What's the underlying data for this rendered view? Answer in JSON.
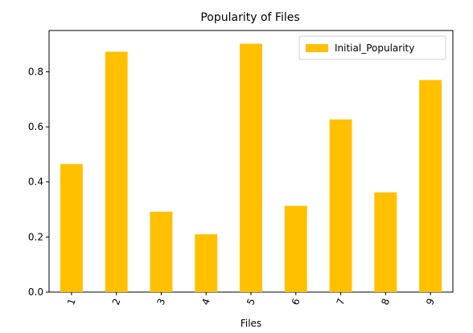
{
  "chart_data": {
    "type": "bar",
    "title": "Popularity of Files",
    "xlabel": "Files",
    "ylabel": "",
    "categories": [
      "1",
      "2",
      "3",
      "4",
      "5",
      "6",
      "7",
      "8",
      "9"
    ],
    "series": [
      {
        "name": "Initial_Popularity",
        "values": [
          0.465,
          0.873,
          0.292,
          0.21,
          0.902,
          0.313,
          0.627,
          0.362,
          0.77
        ]
      }
    ],
    "ylim": [
      0,
      0.95
    ],
    "yticks": [
      "0.0",
      "0.2",
      "0.4",
      "0.6",
      "0.8"
    ],
    "grid": false,
    "legend_position": "top-right",
    "x_tick_rotation": "rotated",
    "colors": {
      "bar": "#ffc000",
      "axis": "#000000"
    }
  }
}
